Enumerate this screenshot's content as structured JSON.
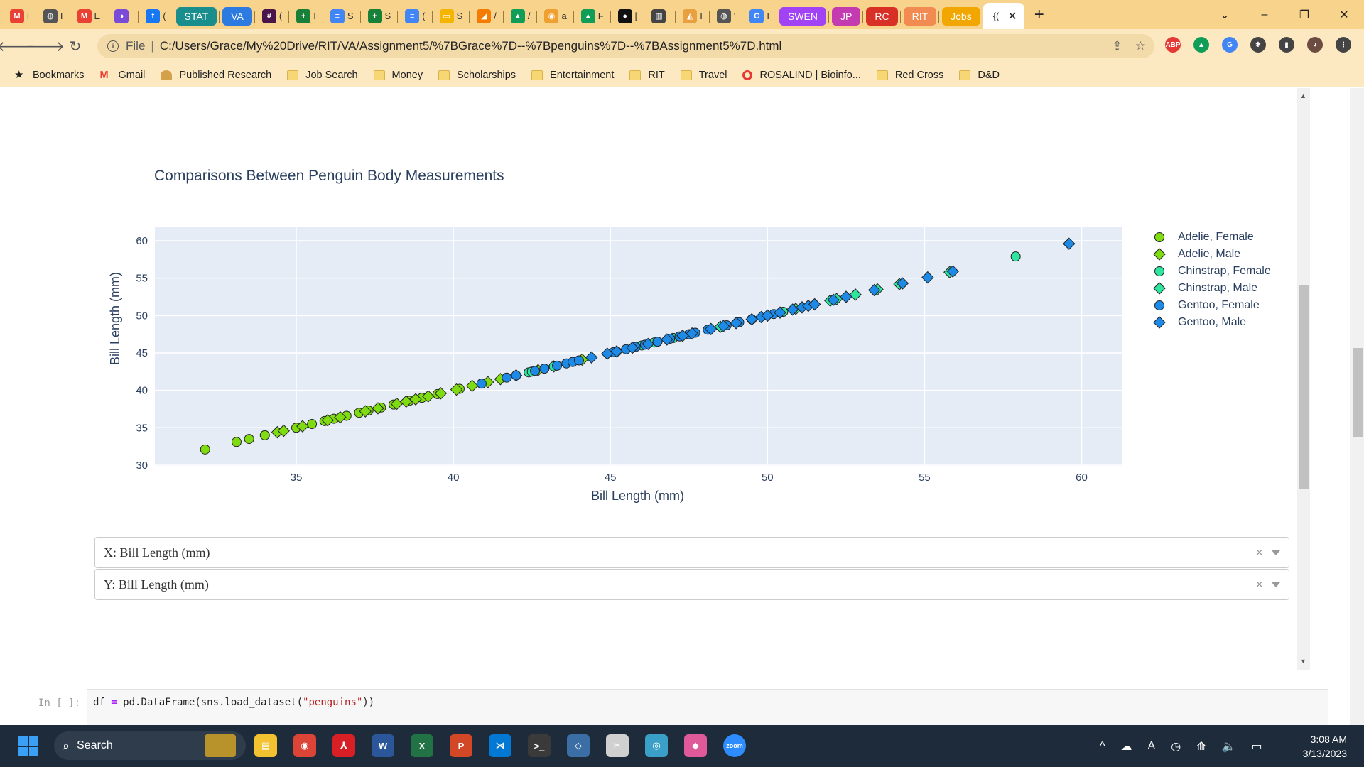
{
  "browser": {
    "tabs": [
      {
        "name": "gmail",
        "fav": "M",
        "color": "#e94235",
        "frag": "i"
      },
      {
        "name": "web",
        "fav": "◍",
        "color": "#555555",
        "frag": "I"
      },
      {
        "name": "gmail2",
        "fav": "M",
        "color": "#e94235",
        "frag": "E"
      },
      {
        "name": "app",
        "fav": "◑",
        "color": "#7a4bd6",
        "frag": ""
      },
      {
        "name": "facebook",
        "fav": "f",
        "color": "#1877f2",
        "frag": "("
      },
      {
        "group": true,
        "label": "STAT",
        "color": "#1a8d8d"
      },
      {
        "group": true,
        "label": "VA",
        "color": "#2d7be0"
      },
      {
        "name": "slack",
        "fav": "#",
        "color": "#4a154b",
        "frag": "("
      },
      {
        "name": "sheets",
        "fav": "+",
        "color": "#188038",
        "frag": "I"
      },
      {
        "name": "docs",
        "fav": "≡",
        "color": "#4285f4",
        "frag": "S"
      },
      {
        "name": "sheets2",
        "fav": "+",
        "color": "#188038",
        "frag": "S"
      },
      {
        "name": "docs2",
        "fav": "≡",
        "color": "#4285f4",
        "frag": "("
      },
      {
        "name": "slides",
        "fav": "▭",
        "color": "#f4b400",
        "frag": "S"
      },
      {
        "name": "app2",
        "fav": "◢",
        "color": "#f57c00",
        "frag": "/"
      },
      {
        "name": "drive",
        "fav": "▲",
        "color": "#0f9d58",
        "frag": "/"
      },
      {
        "name": "github",
        "fav": "◉",
        "color": "#f0a030",
        "frag": "a"
      },
      {
        "name": "drive2",
        "fav": "▲",
        "color": "#0f9d58",
        "frag": "F"
      },
      {
        "name": "app3",
        "fav": "●",
        "color": "#111111",
        "frag": "["
      },
      {
        "name": "app4",
        "fav": "▥",
        "color": "#444444",
        "frag": ""
      },
      {
        "name": "app5",
        "fav": "◭",
        "color": "#e8a040",
        "frag": "I"
      },
      {
        "name": "web2",
        "fav": "◍",
        "color": "#555555",
        "frag": "'"
      },
      {
        "name": "google",
        "fav": "G",
        "color": "#4285f4",
        "frag": "I"
      },
      {
        "group": true,
        "label": "SWEN",
        "color": "#a142f4"
      },
      {
        "group": true,
        "label": "JP",
        "color": "#c43ab0"
      },
      {
        "group": true,
        "label": "RC",
        "color": "#d93025"
      },
      {
        "group": true,
        "label": "RIT",
        "color": "#f28b52"
      },
      {
        "group": true,
        "label": "Jobs",
        "color": "#f2a600"
      }
    ],
    "active_tab_fragment": "{(",
    "new_tab_label": "+",
    "window_controls": [
      "⌄",
      "–",
      "❐",
      "✕"
    ],
    "address": {
      "scheme": "File",
      "separator": "|",
      "url": "C:/Users/Grace/My%20Drive/RIT/VA/Assignment5/%7BGrace%7D--%7Bpenguins%7D--%7BAssignment5%7D.html"
    },
    "extensions": [
      {
        "name": "adblock",
        "label": "ABP",
        "color": "#e53935"
      },
      {
        "name": "drive",
        "label": "▲",
        "color": "#0f9d58"
      },
      {
        "name": "translate",
        "label": "G",
        "color": "#4285f4"
      },
      {
        "name": "extensions",
        "label": "✱",
        "color": "#444444"
      },
      {
        "name": "sidepanel",
        "label": "▮",
        "color": "#444444"
      },
      {
        "name": "profile",
        "label": "◕",
        "color": "#6d4c41"
      },
      {
        "name": "menu",
        "label": "⋮",
        "color": "#444444"
      }
    ],
    "bookmarks": [
      {
        "name": "bookmarks",
        "label": "Bookmarks",
        "icon": "★"
      },
      {
        "name": "gmail",
        "label": "Gmail",
        "icon": "M"
      },
      {
        "name": "published-research",
        "label": "Published Research",
        "icon": "person"
      },
      {
        "name": "job-search",
        "label": "Job Search",
        "icon": "folder"
      },
      {
        "name": "money",
        "label": "Money",
        "icon": "folder"
      },
      {
        "name": "scholarships",
        "label": "Scholarships",
        "icon": "folder"
      },
      {
        "name": "entertainment",
        "label": "Entertainment",
        "icon": "folder"
      },
      {
        "name": "rit",
        "label": "RIT",
        "icon": "folder"
      },
      {
        "name": "travel",
        "label": "Travel",
        "icon": "folder"
      },
      {
        "name": "rosalind",
        "label": "ROSALIND | Bioinfo...",
        "icon": "rosalind"
      },
      {
        "name": "red-cross",
        "label": "Red Cross",
        "icon": "folder"
      },
      {
        "name": "dnd",
        "label": "D&D",
        "icon": "folder"
      }
    ]
  },
  "chart_data": {
    "type": "scatter",
    "title": "Comparisons Between Penguin Body Measurements",
    "xlabel": "Bill Length (mm)",
    "ylabel": "Bill Length (mm)",
    "xlim": [
      30.5,
      61.3
    ],
    "ylim": [
      29.9,
      61.9
    ],
    "xticks": [
      35,
      40,
      45,
      50,
      55,
      60
    ],
    "yticks": [
      30,
      35,
      40,
      45,
      50,
      55,
      60
    ],
    "grid": true,
    "legend_position": "right",
    "series": [
      {
        "name": "Adelie, Female",
        "symbol": "circle",
        "color": "#7fdc10",
        "values": [
          32.1,
          33.1,
          33.5,
          34.0,
          35.0,
          35.5,
          35.9,
          36.2,
          36.6,
          37.0,
          37.3,
          37.7,
          38.1,
          38.6,
          39.0,
          39.5,
          40.2,
          40.9
        ]
      },
      {
        "name": "Adelie, Male",
        "symbol": "diamond",
        "color": "#7fdc10",
        "values": [
          34.4,
          34.6,
          35.2,
          36.0,
          36.4,
          37.2,
          37.6,
          38.2,
          38.5,
          38.8,
          39.2,
          39.6,
          40.1,
          40.6,
          41.1,
          41.5,
          42.0,
          42.7,
          43.2,
          44.1
        ]
      },
      {
        "name": "Chinstrap, Female",
        "symbol": "circle",
        "color": "#2ee6a0",
        "values": [
          42.4,
          42.5,
          43.2,
          45.2,
          46.0,
          46.4,
          47.0,
          47.5,
          50.5,
          57.9
        ]
      },
      {
        "name": "Chinstrap, Male",
        "symbol": "diamond",
        "color": "#2ee6a0",
        "values": [
          48.5,
          49.0,
          50.0,
          50.9,
          51.5,
          52.0,
          52.2,
          52.8,
          53.5,
          54.2,
          55.8
        ]
      },
      {
        "name": "Gentoo, Female",
        "symbol": "circle",
        "color": "#1c8ae6",
        "values": [
          40.9,
          41.7,
          42.0,
          42.6,
          42.9,
          43.3,
          43.6,
          43.8,
          44.0,
          45.1,
          45.5,
          45.8,
          46.1,
          46.5,
          46.9,
          47.2,
          47.5,
          47.7,
          48.1,
          48.7,
          49.1,
          49.5,
          50.2
        ]
      },
      {
        "name": "Gentoo, Male",
        "symbol": "diamond",
        "color": "#1c8ae6",
        "values": [
          44.4,
          44.9,
          45.2,
          45.7,
          46.2,
          46.8,
          47.3,
          47.6,
          48.2,
          48.6,
          49.0,
          49.5,
          49.8,
          50.0,
          50.4,
          50.8,
          51.1,
          51.3,
          51.5,
          52.1,
          52.5,
          53.4,
          54.3,
          55.1,
          55.9,
          59.6
        ]
      }
    ]
  },
  "controls": {
    "x_dropdown": {
      "value": "X: Bill Length (mm)",
      "clear": "×"
    },
    "y_dropdown": {
      "value": "Y: Bill Length (mm)",
      "clear": "×"
    }
  },
  "cell": {
    "prompt": "In [ ]:",
    "code_prefix": "df ",
    "code_op": "=",
    "code_mid": " pd.DataFrame(sns.load_dataset(",
    "code_str": "\"penguins\"",
    "code_suffix": "))"
  },
  "taskbar": {
    "search_label": "Search",
    "apps": [
      {
        "name": "file-explorer",
        "label": "▤",
        "color": "#f2c230"
      },
      {
        "name": "chrome",
        "label": "◉",
        "color": "#db4437"
      },
      {
        "name": "acrobat",
        "label": "⅄",
        "color": "#d81f26"
      },
      {
        "name": "word",
        "label": "W",
        "color": "#2b579a"
      },
      {
        "name": "excel",
        "label": "X",
        "color": "#217346"
      },
      {
        "name": "powerpoint",
        "label": "P",
        "color": "#d24726"
      },
      {
        "name": "vscode",
        "label": "⋊",
        "color": "#0078d4"
      },
      {
        "name": "terminal",
        "label": ">_",
        "color": "#3a3a3a"
      },
      {
        "name": "app-blue",
        "label": "◇",
        "color": "#3b6ea5"
      },
      {
        "name": "snipping",
        "label": "✂",
        "color": "#d0d0d0"
      },
      {
        "name": "globe-app",
        "label": "◎",
        "color": "#3aa0c8"
      },
      {
        "name": "paint",
        "label": "◆",
        "color": "#e05a9a"
      },
      {
        "name": "zoom",
        "label": "zoom",
        "color": "#2d8cff"
      }
    ],
    "tray": [
      "^",
      "☁",
      "A",
      "◷",
      "⟰",
      "🔈",
      "▭"
    ],
    "time": "3:08 AM",
    "date": "3/13/2023"
  }
}
